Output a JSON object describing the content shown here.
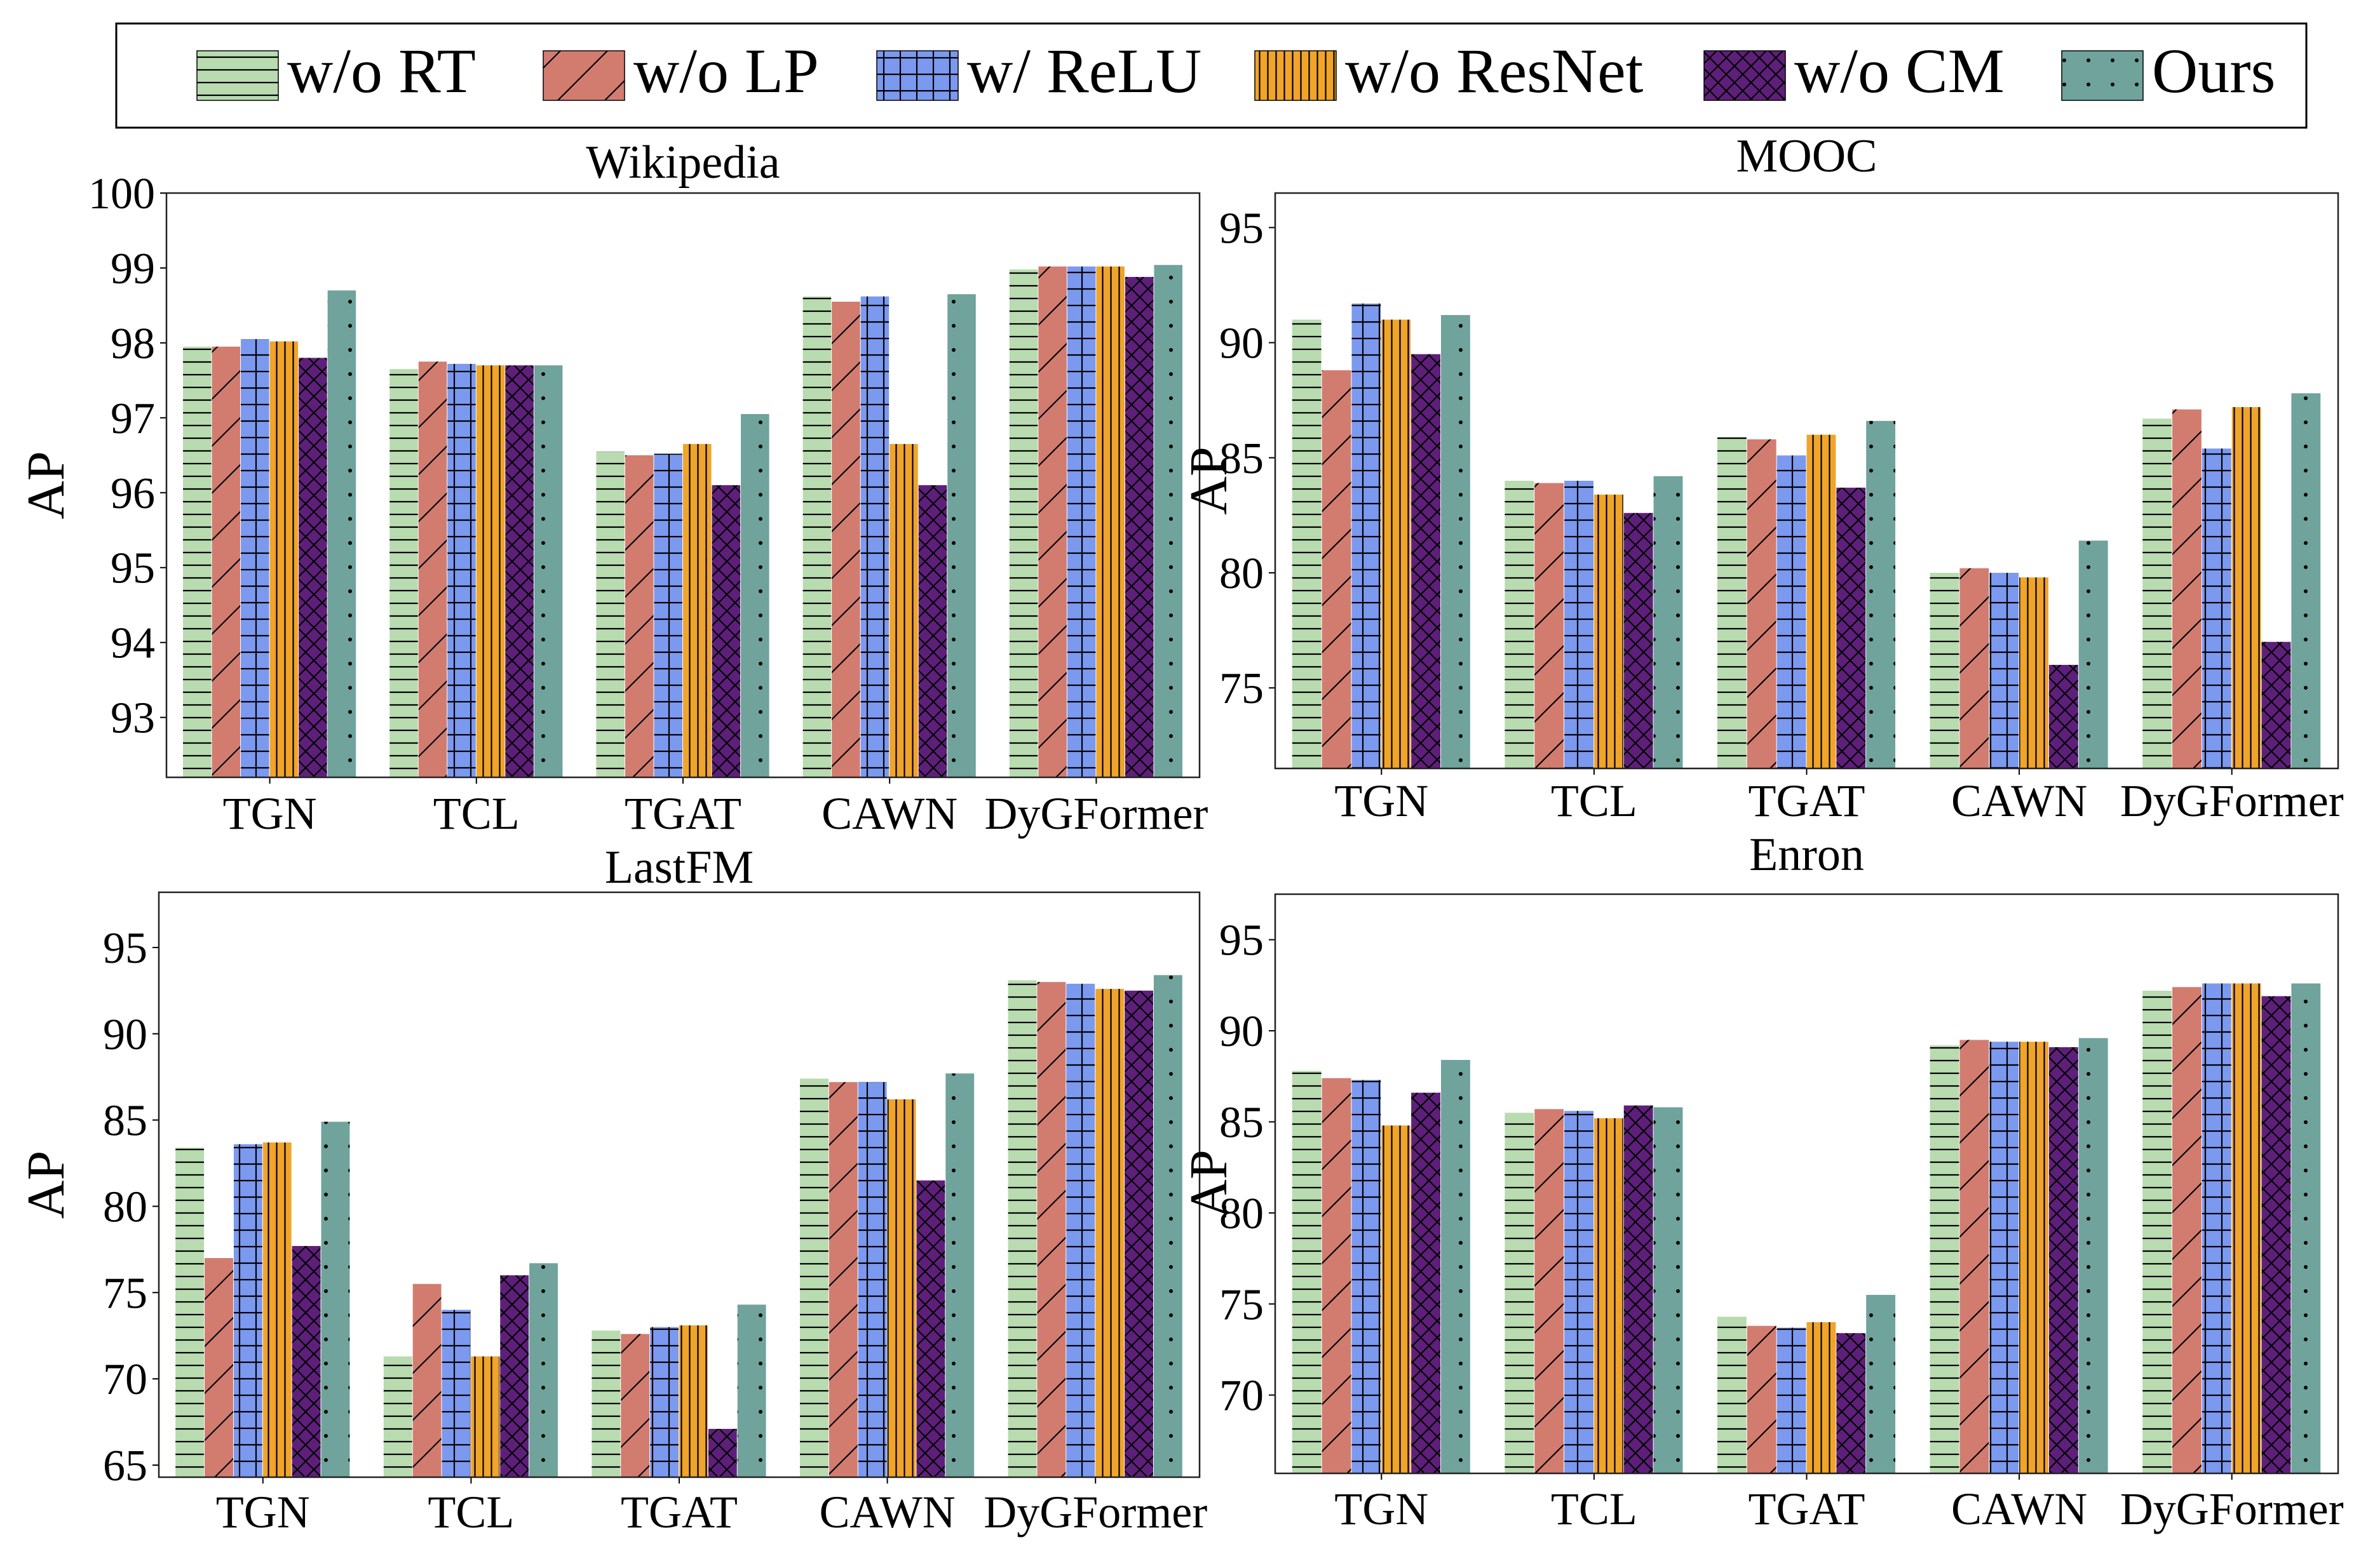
{
  "legend": {
    "items": [
      {
        "label": "w/o RT",
        "color": "#b8dbb0",
        "pattern": "hlines"
      },
      {
        "label": "w/o LP",
        "color": "#d27c70",
        "pattern": "diag"
      },
      {
        "label": "w/ ReLU",
        "color": "#7c99f0",
        "pattern": "grid"
      },
      {
        "label": "w/o ResNet",
        "color": "#f0a42a",
        "pattern": "vlines"
      },
      {
        "label": "w/o CM",
        "color": "#5e1f7a",
        "pattern": "cross"
      },
      {
        "label": "Ours",
        "color": "#6fa39b",
        "pattern": "dots"
      }
    ]
  },
  "chart_data": [
    {
      "type": "bar",
      "title": "Wikipedia",
      "xlabel": "",
      "ylabel": "AP",
      "ylim": [
        92.2,
        100
      ],
      "yticks": [
        93,
        94,
        95,
        96,
        97,
        98,
        99,
        100
      ],
      "categories": [
        "TGN",
        "TCL",
        "TGAT",
        "CAWN",
        "DyGFormer"
      ],
      "series": [
        {
          "name": "w/o RT",
          "values": [
            97.95,
            97.65,
            96.55,
            98.62,
            98.98
          ]
        },
        {
          "name": "w/o LP",
          "values": [
            97.95,
            97.75,
            96.5,
            98.55,
            99.02
          ]
        },
        {
          "name": "w/ ReLU",
          "values": [
            98.05,
            97.72,
            96.52,
            98.62,
            99.02
          ]
        },
        {
          "name": "w/o ResNet",
          "values": [
            98.02,
            97.7,
            96.65,
            96.65,
            99.02
          ]
        },
        {
          "name": "w/o CM",
          "values": [
            97.8,
            97.7,
            96.1,
            96.1,
            98.88
          ]
        },
        {
          "name": "Ours",
          "values": [
            98.7,
            97.7,
            97.05,
            98.65,
            99.04
          ]
        }
      ]
    },
    {
      "type": "bar",
      "title": "MOOC",
      "xlabel": "",
      "ylabel": "AP",
      "ylim": [
        71.5,
        96.5
      ],
      "yticks": [
        75,
        80,
        85,
        90,
        95
      ],
      "categories": [
        "TGN",
        "TCL",
        "TGAT",
        "CAWN",
        "DyGFormer"
      ],
      "series": [
        {
          "name": "w/o RT",
          "values": [
            91.0,
            84.0,
            85.9,
            80.0,
            86.7
          ]
        },
        {
          "name": "w/o LP",
          "values": [
            88.8,
            83.9,
            85.8,
            80.2,
            87.1
          ]
        },
        {
          "name": "w/ ReLU",
          "values": [
            91.7,
            84.0,
            85.1,
            80.0,
            85.4
          ]
        },
        {
          "name": "w/o ResNet",
          "values": [
            91.0,
            83.4,
            86.0,
            79.8,
            87.2
          ]
        },
        {
          "name": "w/o CM",
          "values": [
            89.5,
            82.6,
            83.7,
            76.0,
            77.0
          ]
        },
        {
          "name": "Ours",
          "values": [
            91.2,
            84.2,
            86.6,
            81.4,
            87.8
          ]
        }
      ]
    },
    {
      "type": "bar",
      "title": "LastFM",
      "xlabel": "",
      "ylabel": "AP",
      "ylim": [
        64.3,
        98.2
      ],
      "yticks": [
        65,
        70,
        75,
        80,
        85,
        90,
        95
      ],
      "categories": [
        "TGN",
        "TCL",
        "TGAT",
        "CAWN",
        "DyGFormer"
      ],
      "series": [
        {
          "name": "w/o RT",
          "values": [
            83.4,
            71.3,
            72.8,
            87.4,
            93.1
          ]
        },
        {
          "name": "w/o LP",
          "values": [
            77.0,
            75.5,
            72.6,
            87.2,
            93.0
          ]
        },
        {
          "name": "w/ ReLU",
          "values": [
            83.6,
            74.0,
            73.0,
            87.2,
            92.9
          ]
        },
        {
          "name": "w/o ResNet",
          "values": [
            83.7,
            71.3,
            73.1,
            86.2,
            92.6
          ]
        },
        {
          "name": "w/o CM",
          "values": [
            77.7,
            76.0,
            67.1,
            81.5,
            92.5
          ]
        },
        {
          "name": "Ours",
          "values": [
            84.9,
            76.7,
            74.3,
            87.7,
            93.4
          ]
        }
      ]
    },
    {
      "type": "bar",
      "title": "Enron",
      "xlabel": "",
      "ylabel": "AP",
      "ylim": [
        65.7,
        97.5
      ],
      "yticks": [
        70,
        75,
        80,
        85,
        90,
        95
      ],
      "categories": [
        "TGN",
        "TCL",
        "TGAT",
        "CAWN",
        "DyGFormer"
      ],
      "series": [
        {
          "name": "w/o RT",
          "values": [
            87.8,
            85.5,
            74.3,
            89.2,
            92.2
          ]
        },
        {
          "name": "w/o LP",
          "values": [
            87.4,
            85.7,
            73.8,
            89.5,
            92.4
          ]
        },
        {
          "name": "w/ ReLU",
          "values": [
            87.3,
            85.6,
            73.7,
            89.4,
            92.6
          ]
        },
        {
          "name": "w/o ResNet",
          "values": [
            84.8,
            85.2,
            74.0,
            89.4,
            92.6
          ]
        },
        {
          "name": "w/o CM",
          "values": [
            86.6,
            85.9,
            73.4,
            89.1,
            91.9
          ]
        },
        {
          "name": "Ours",
          "values": [
            88.4,
            85.8,
            75.5,
            89.6,
            92.6
          ]
        }
      ]
    }
  ]
}
